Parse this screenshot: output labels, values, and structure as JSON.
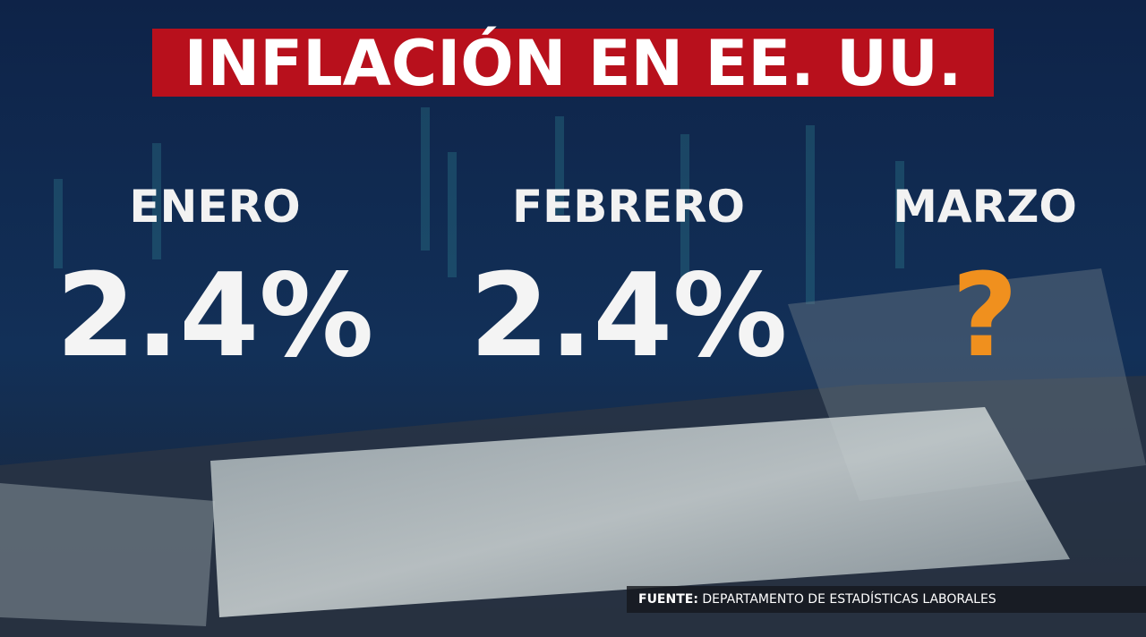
{
  "header": {
    "title": "INFLACIÓN EN EE. UU."
  },
  "items": [
    {
      "month": "ENERO",
      "value": "2.4%"
    },
    {
      "month": "FEBRERO",
      "value": "2.4%"
    },
    {
      "month": "MARZO",
      "value": "?"
    }
  ],
  "source": {
    "label": "FUENTE:",
    "text": "DEPARTAMENTO DE ESTADÍSTICAS LABORALES"
  }
}
